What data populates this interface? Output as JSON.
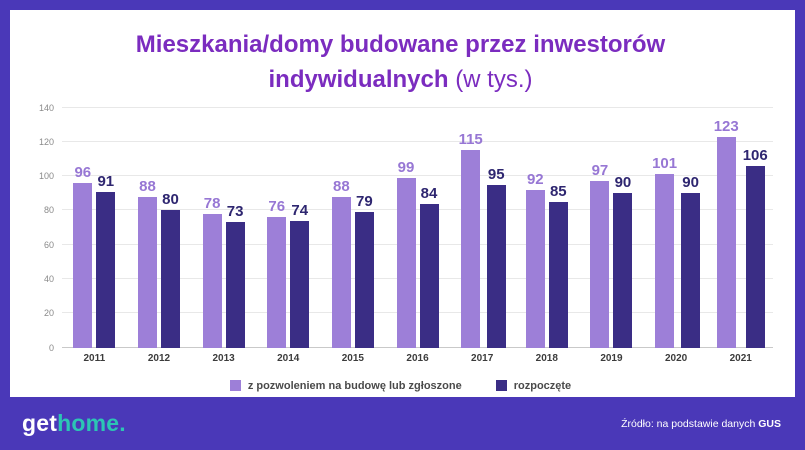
{
  "title": {
    "main": "Mieszkania/domy budowane przez inwestorów indywidualnych ",
    "unit": "(w tys.)"
  },
  "colors": {
    "frame": "#4a38b8",
    "title_text": "#7b2cbf",
    "series1": "#9d7fd8",
    "series2": "#3a2d85",
    "logo_teal": "#2cc5b4"
  },
  "chart_data": {
    "type": "bar",
    "categories": [
      "2011",
      "2012",
      "2013",
      "2014",
      "2015",
      "2016",
      "2017",
      "2018",
      "2019",
      "2020",
      "2021"
    ],
    "series": [
      {
        "name": "z pozwoleniem na budowę lub zgłoszone",
        "color": "#9d7fd8",
        "label_color": "#9777d4",
        "values": [
          96,
          88,
          78,
          76,
          88,
          99,
          115,
          92,
          97,
          101,
          123
        ]
      },
      {
        "name": "rozpoczęte",
        "color": "#3a2d85",
        "label_color": "#2e2670",
        "values": [
          91,
          80,
          73,
          74,
          79,
          84,
          95,
          85,
          90,
          90,
          106
        ]
      }
    ],
    "title": "Mieszkania/domy budowane przez inwestorów indywidualnych (w tys.)",
    "xlabel": "",
    "ylabel": "",
    "ylim": [
      0,
      140
    ],
    "yticks": [
      0,
      20,
      40,
      60,
      80,
      100,
      120,
      140
    ],
    "grid": true,
    "legend_position": "bottom"
  },
  "footer": {
    "logo_get": "get",
    "logo_home": "home",
    "logo_dot": ".",
    "source_prefix": "Źródło: na podstawie danych ",
    "source_bold": "GUS"
  }
}
